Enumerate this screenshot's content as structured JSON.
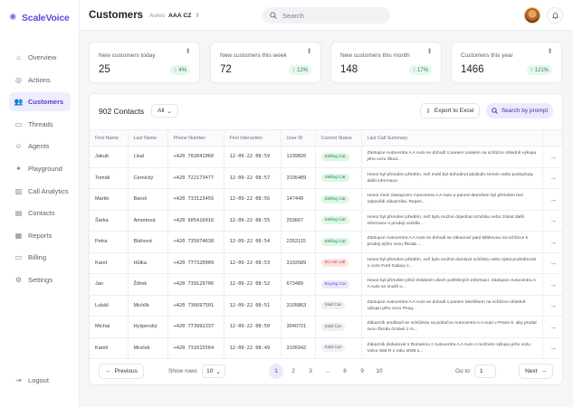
{
  "app": {
    "name": "ScaleVoice"
  },
  "sidebar": {
    "items": [
      {
        "label": "Overview",
        "icon": "home-icon",
        "glyph": "⌂"
      },
      {
        "label": "Actions",
        "icon": "actions-icon",
        "glyph": "◎"
      },
      {
        "label": "Customers",
        "icon": "users-icon",
        "glyph": "👥",
        "active": true
      },
      {
        "label": "Threads",
        "icon": "threads-icon",
        "glyph": "▭"
      },
      {
        "label": "Agents",
        "icon": "agent-icon",
        "glyph": "☺"
      },
      {
        "label": "Playground",
        "icon": "playground-icon",
        "glyph": "✦"
      },
      {
        "label": "Call Analytics",
        "icon": "analytics-icon",
        "glyph": "▥"
      },
      {
        "label": "Contacts",
        "icon": "contacts-icon",
        "glyph": "▤"
      },
      {
        "label": "Reports",
        "icon": "reports-icon",
        "glyph": "▦"
      },
      {
        "label": "Billing",
        "icon": "billing-icon",
        "glyph": "▭"
      },
      {
        "label": "Settings",
        "icon": "gear-icon",
        "glyph": "⚙"
      }
    ],
    "logout_label": "Logout"
  },
  "header": {
    "title": "Customers",
    "org_label": "Aures",
    "org_value": "AAA CZ",
    "search_placeholder": "Search"
  },
  "stats": [
    {
      "label": "New customers today",
      "value": "25",
      "change": "4%"
    },
    {
      "label": "New customers this week",
      "value": "72",
      "change": "12%"
    },
    {
      "label": "New customers this month",
      "value": "148",
      "change": "17%"
    },
    {
      "label": "Customers this year",
      "value": "1466",
      "change": "121%"
    }
  ],
  "table": {
    "title": "902 Contacts",
    "filter_value": "All",
    "export_label": "Export to Excel",
    "prompt_label": "Search by prompt",
    "columns": [
      "First Name",
      "Last Name",
      "Phone Number",
      "First Interaction",
      "User ID",
      "Current Status",
      "Last Call Summary"
    ],
    "rows": [
      {
        "first": "Jakub",
        "last": "Lisal",
        "phone": "+420 702041060",
        "time": "12-09-22 08:59",
        "id": "1239826",
        "status": "Selling Car",
        "tone": "green",
        "summary": "Zástupce Autocentra A A Auto se dohodl s panem Lisalem na schůzce ohledně výkupu jeho vozu Škod..."
      },
      {
        "first": "Tomáš",
        "last": "Cernický",
        "phone": "+420 722173477",
        "time": "12-09-22 08:57",
        "id": "3105489",
        "status": "Selling Car",
        "tone": "green",
        "summary": "Hovor byl přerušen předtím, než mohl být dohodnut jakýkoliv termín nebo poskytnuty další informace."
      },
      {
        "first": "Martin",
        "last": "Baroš",
        "phone": "+420 733123456",
        "time": "12-09-22 08:56",
        "id": "147449",
        "status": "Selling Car",
        "tone": "green",
        "summary": "Hovor mezi zástupcem Autocentra A A Auto a panem Barošem byl přerušen bez odpovědi zákazníka. Repeti..."
      },
      {
        "first": "Šárka",
        "last": "Amortová",
        "phone": "+420 605416016",
        "time": "12-09-22 08:55",
        "id": "253667",
        "status": "Selling Car",
        "tone": "green",
        "summary": "Hovor byl přerušen předtím, než bylo možné dojednat schůzku nebo získat další informace o prodeji vozidla ..."
      },
      {
        "first": "Petra",
        "last": "Bláhová",
        "phone": "+420 735874638",
        "time": "12-09-22 08:54",
        "id": "2352115",
        "status": "Selling Car",
        "tone": "green",
        "summary": "Zástupce Autocentra A A Auto se dohodl se zákaznicí paní Bláhovou na schůzce k prodeji jejího vozu Škoda ..."
      },
      {
        "first": "Karel",
        "last": "Hůlka",
        "phone": "+420 777320009",
        "time": "12-09-22 08:53",
        "id": "3102689",
        "status": "Do not call",
        "tone": "red",
        "summary": "Hovor byl přerušen předtím, než bylo možné domluvit schůzku nebo zjistit podrobnosti o voze Ford Galaxy z..."
      },
      {
        "first": "Jan",
        "last": "Žďrek",
        "phone": "+420 739129706",
        "time": "12-09-22 08:52",
        "id": "673489",
        "status": "Buying Car",
        "tone": "purple",
        "summary": "Hovor byl přerušen před získáním všech potřebných informací. Zástupce Autocentra A A Auto se snažil o..."
      },
      {
        "first": "Lukáš",
        "last": "Michlík",
        "phone": "+420 736697501",
        "time": "12-09-22 08:51",
        "id": "3105863",
        "status": "Sold Car",
        "tone": "gray",
        "summary": "Zástupce Autocentra A A Auto se dohodl s panem Michlíkem na schůzce ohledně výkupu jeho vozu Peug..."
      },
      {
        "first": "Michal",
        "last": "Hyšperský",
        "phone": "+420 773992337",
        "time": "12-09-22 08:50",
        "id": "3040721",
        "status": "Sold Car",
        "tone": "gray",
        "summary": "Zákazník souhlasil se schůzkou na pobočce Autocentra A A Auto v Praze 8, aby prodal svou Škodu Octávii z ro..."
      },
      {
        "first": "Kamil",
        "last": "Mroček",
        "phone": "+420 731015564",
        "time": "12-09-22 08:49",
        "id": "3105942",
        "status": "Sold Car",
        "tone": "gray",
        "summary": "Zákazník diskutoval s Romanou z Autocentra A A Auto o možném výkupu jeho vozu Volvo S60 R z roku 2006 s..."
      }
    ]
  },
  "pagination": {
    "prev_label": "Previous",
    "show_rows_label": "Show rows",
    "rows_value": "10",
    "pages": [
      "1",
      "2",
      "3",
      "...",
      "8",
      "9",
      "10"
    ],
    "active_page": "1",
    "goto_label": "Go to",
    "goto_value": "1",
    "next_label": "Next"
  }
}
